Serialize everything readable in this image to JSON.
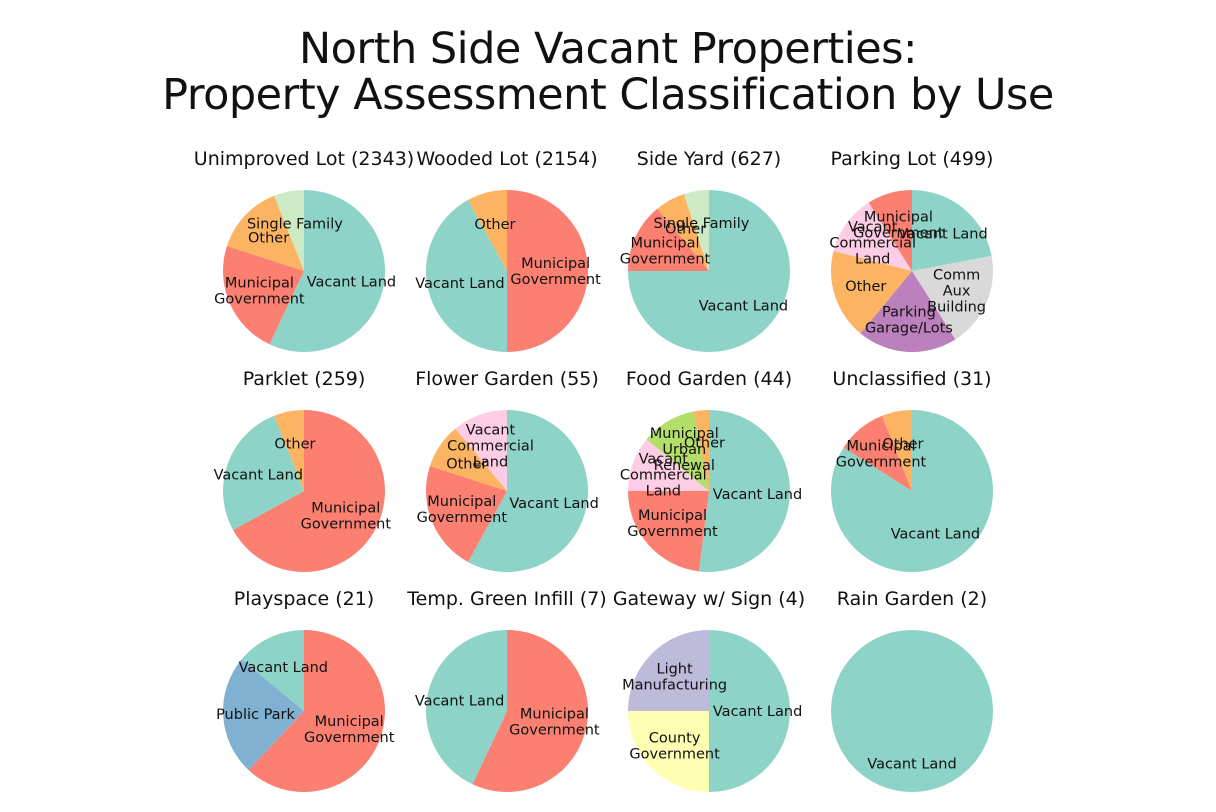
{
  "chart": {
    "title_line1": "North Side Vacant Properties:",
    "title_line2": "Property Assessment Classification by Use"
  },
  "chart_data": [
    {
      "type": "pie",
      "title": "Unimproved Lot (2343)",
      "slices": [
        {
          "label": "Vacant Land",
          "value": 57,
          "color": "#8dd3c7"
        },
        {
          "label": "Municipal Government",
          "value": 23,
          "color": "#fb8072"
        },
        {
          "label": "Other",
          "value": 14,
          "color": "#fdb462"
        },
        {
          "label": "Single Family",
          "value": 6,
          "color": "#ccebc5"
        }
      ]
    },
    {
      "type": "pie",
      "title": "Wooded Lot (2154)",
      "slices": [
        {
          "label": "Municipal Government",
          "value": 50,
          "color": "#fb8072"
        },
        {
          "label": "Vacant Land",
          "value": 42,
          "color": "#8dd3c7"
        },
        {
          "label": "Other",
          "value": 8,
          "color": "#fdb462"
        }
      ]
    },
    {
      "type": "pie",
      "title": "Side Yard (627)",
      "slices": [
        {
          "label": "Vacant Land",
          "value": 75,
          "color": "#8dd3c7"
        },
        {
          "label": "Municipal Government",
          "value": 14,
          "color": "#fb8072"
        },
        {
          "label": "Other",
          "value": 6,
          "color": "#fdb462"
        },
        {
          "label": "Single Family",
          "value": 5,
          "color": "#ccebc5"
        }
      ]
    },
    {
      "type": "pie",
      "title": "Parking Lot (499)",
      "slices": [
        {
          "label": "Vacant Land",
          "value": 22,
          "color": "#8dd3c7"
        },
        {
          "label": "Comm Aux Building",
          "value": 19,
          "color": "#d9d9d9"
        },
        {
          "label": "Parking Garage/Lots",
          "value": 20,
          "color": "#bc80bd"
        },
        {
          "label": "Other",
          "value": 18,
          "color": "#fdb462"
        },
        {
          "label": "Vacant Commercial Land",
          "value": 12,
          "color": "#fccde5"
        },
        {
          "label": "Municipal Government",
          "value": 9,
          "color": "#fb8072"
        }
      ]
    },
    {
      "type": "pie",
      "title": "Parklet (259)",
      "slices": [
        {
          "label": "Municipal Government",
          "value": 67,
          "color": "#fb8072"
        },
        {
          "label": "Vacant Land",
          "value": 27,
          "color": "#8dd3c7"
        },
        {
          "label": "Other",
          "value": 6,
          "color": "#fdb462"
        }
      ]
    },
    {
      "type": "pie",
      "title": "Flower Garden (55)",
      "slices": [
        {
          "label": "Vacant Land",
          "value": 58,
          "color": "#8dd3c7"
        },
        {
          "label": "Municipal Government",
          "value": 22,
          "color": "#fb8072"
        },
        {
          "label": "Other",
          "value": 9,
          "color": "#fdb462"
        },
        {
          "label": "Vacant Commercial Land",
          "value": 11,
          "color": "#fccde5"
        }
      ]
    },
    {
      "type": "pie",
      "title": "Food Garden (44)",
      "slices": [
        {
          "label": "Vacant Land",
          "value": 52,
          "color": "#8dd3c7"
        },
        {
          "label": "Municipal Government",
          "value": 23,
          "color": "#fb8072"
        },
        {
          "label": "Vacant Commercial Land",
          "value": 11,
          "color": "#fccde5"
        },
        {
          "label": "Municipal Urban Renewal",
          "value": 11,
          "color": "#b3de69"
        },
        {
          "label": "Other",
          "value": 3,
          "color": "#fdb462"
        }
      ]
    },
    {
      "type": "pie",
      "title": "Unclassified (31)",
      "slices": [
        {
          "label": "Vacant Land",
          "value": 84,
          "color": "#8dd3c7"
        },
        {
          "label": "Municipal Government",
          "value": 10,
          "color": "#fb8072"
        },
        {
          "label": "Other",
          "value": 6,
          "color": "#fdb462"
        }
      ]
    },
    {
      "type": "pie",
      "title": "Playspace (21)",
      "slices": [
        {
          "label": "Municipal Government",
          "value": 62,
          "color": "#fb8072"
        },
        {
          "label": "Public Park",
          "value": 24,
          "color": "#80b1d3"
        },
        {
          "label": "Vacant Land",
          "value": 14,
          "color": "#8dd3c7"
        }
      ]
    },
    {
      "type": "pie",
      "title": "Temp. Green Infill (7)",
      "slices": [
        {
          "label": "Municipal Government",
          "value": 57,
          "color": "#fb8072"
        },
        {
          "label": "Vacant Land",
          "value": 43,
          "color": "#8dd3c7"
        }
      ]
    },
    {
      "type": "pie",
      "title": "Gateway w/ Sign (4)",
      "slices": [
        {
          "label": "Vacant Land",
          "value": 50,
          "color": "#8dd3c7"
        },
        {
          "label": "County Government",
          "value": 25,
          "color": "#ffffb3"
        },
        {
          "label": "Light Manufacturing",
          "value": 25,
          "color": "#bebada"
        }
      ]
    },
    {
      "type": "pie",
      "title": "Rain Garden (2)",
      "slices": [
        {
          "label": "Vacant Land",
          "value": 100,
          "color": "#8dd3c7"
        }
      ]
    }
  ]
}
